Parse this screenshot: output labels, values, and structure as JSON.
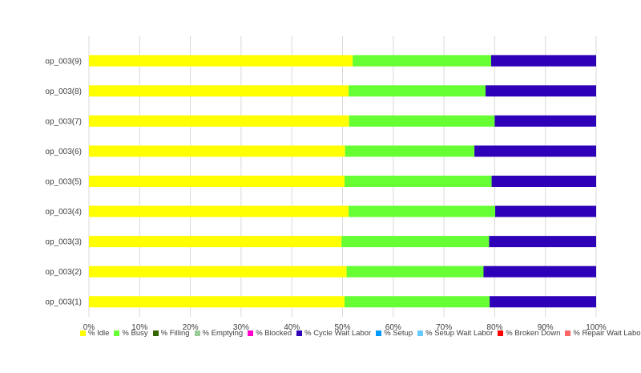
{
  "chart_data": {
    "type": "bar",
    "orientation": "horizontal",
    "stacked": true,
    "percent": true,
    "categories": [
      "op_003(9)",
      "op_003(8)",
      "op_003(7)",
      "op_003(6)",
      "op_003(5)",
      "op_003(4)",
      "op_003(3)",
      "op_003(2)",
      "op_003(1)"
    ],
    "xlim": [
      0,
      100
    ],
    "xticks": [
      "0%",
      "10%",
      "20%",
      "30%",
      "40%",
      "50%",
      "60%",
      "70%",
      "80%",
      "90%",
      "100%"
    ],
    "grid": true,
    "legend_position": "bottom",
    "series": [
      {
        "name": "% Idle",
        "color": "#ffff00",
        "values": [
          52.0,
          51.2,
          51.3,
          50.5,
          50.4,
          51.2,
          49.8,
          50.8,
          50.4
        ]
      },
      {
        "name": "% Busy",
        "color": "#66ff33",
        "values": [
          27.3,
          27.0,
          28.7,
          25.5,
          29.0,
          28.9,
          29.1,
          27.0,
          28.6
        ]
      },
      {
        "name": "% Filling",
        "color": "#336600",
        "values": [
          0,
          0,
          0,
          0,
          0,
          0,
          0,
          0,
          0
        ]
      },
      {
        "name": "% Emptying",
        "color": "#99cc99",
        "values": [
          0,
          0,
          0,
          0,
          0,
          0,
          0,
          0,
          0
        ]
      },
      {
        "name": "% Blocked",
        "color": "#ff00cc",
        "values": [
          0,
          0,
          0,
          0,
          0,
          0,
          0,
          0,
          0
        ]
      },
      {
        "name": "% Cycle Wait Labor",
        "color": "#2e00b8",
        "values": [
          20.7,
          21.8,
          20.0,
          24.0,
          20.6,
          19.9,
          21.1,
          22.2,
          21.0
        ]
      },
      {
        "name": "% Setup",
        "color": "#0099ff",
        "values": [
          0,
          0,
          0,
          0,
          0,
          0,
          0,
          0,
          0
        ]
      },
      {
        "name": "% Setup Wait Labor",
        "color": "#66ccff",
        "values": [
          0,
          0,
          0,
          0,
          0,
          0,
          0,
          0,
          0
        ]
      },
      {
        "name": "% Broken Down",
        "color": "#ff0000",
        "values": [
          0,
          0,
          0,
          0,
          0,
          0,
          0,
          0,
          0
        ]
      },
      {
        "name": "% Repair Wait Labor",
        "color": "#ff6666",
        "values": [
          0,
          0,
          0,
          0,
          0,
          0,
          0,
          0,
          0
        ]
      }
    ]
  }
}
